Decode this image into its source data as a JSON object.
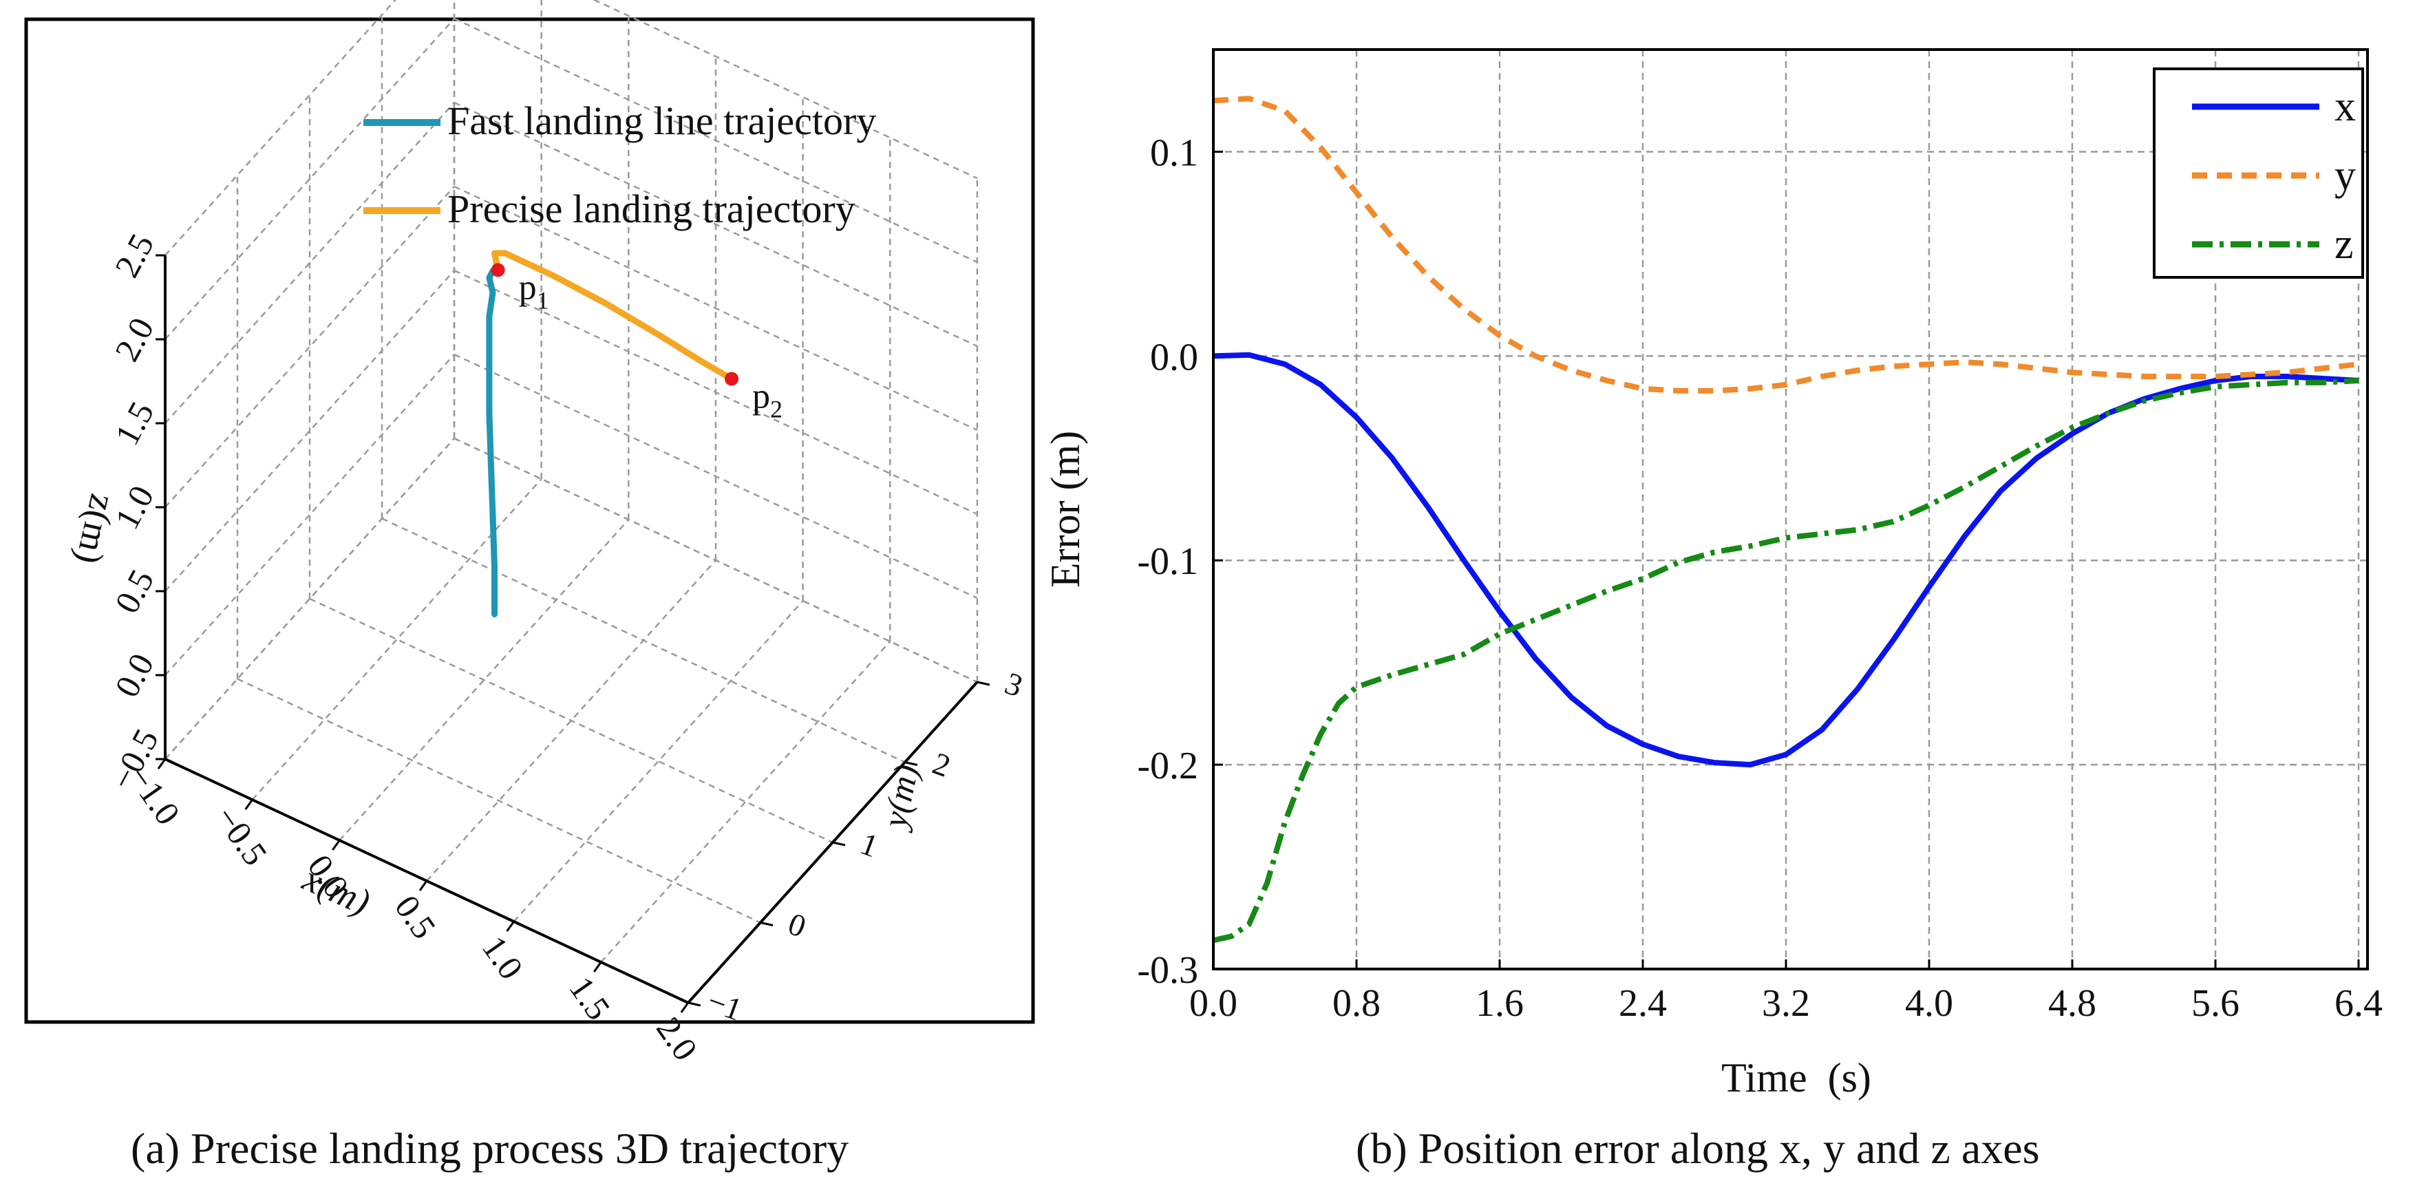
{
  "colors": {
    "fast": "#1e96b4",
    "precise": "#f5a623",
    "point": "#e8141e",
    "x_series": "#0a14ee",
    "y_series": "#f08a2a",
    "z_series": "#158a15",
    "grid": "#9a9a9a"
  },
  "chart_data": [
    {
      "id": "traj3d",
      "type": "line",
      "projection": "3d",
      "title": "(a)  Precise landing  process 3D trajectory",
      "xlabel": "x(m)",
      "ylabel": "y(m)",
      "zlabel": "z(m)",
      "xlim": [
        -1.0,
        2.0
      ],
      "ylim": [
        -1,
        3
      ],
      "zlim": [
        -0.5,
        2.5
      ],
      "x_ticks": [
        -1.0,
        -0.5,
        0.0,
        0.5,
        1.0,
        1.5,
        2.0
      ],
      "x_tick_labels": [
        "−1.0",
        "−0.5",
        "0.0",
        "0.5",
        "1.0",
        "1.5",
        "2.0"
      ],
      "y_ticks": [
        -1,
        0,
        1,
        2,
        3
      ],
      "y_tick_labels": [
        "−1",
        "0",
        "1",
        "2",
        "3"
      ],
      "z_ticks": [
        -0.5,
        0.0,
        0.5,
        1.0,
        1.5,
        2.0,
        2.5
      ],
      "z_tick_labels": [
        "−0.5",
        "0.0",
        "0.5",
        "1.0",
        "1.5",
        "2.0",
        "2.5"
      ],
      "grid": true,
      "legend_position": "top",
      "series": [
        {
          "name": "Fast landing line trajectory",
          "color_key": "fast",
          "points": [
            [
              0.06,
              1.0,
              -0.08
            ],
            [
              0.06,
              1.0,
              0.2
            ],
            [
              0.05,
              1.0,
              0.5
            ],
            [
              0.04,
              1.0,
              0.8
            ],
            [
              0.03,
              1.0,
              1.1
            ],
            [
              0.03,
              1.0,
              1.4
            ],
            [
              0.03,
              1.0,
              1.68
            ],
            [
              0.05,
              1.0,
              1.83
            ],
            [
              0.03,
              1.0,
              1.91
            ],
            [
              0.05,
              1.0,
              1.96
            ],
            [
              0.08,
              1.0,
              1.98
            ]
          ]
        },
        {
          "name": "Precise landing trajectory",
          "color_key": "precise",
          "points": [
            [
              0.08,
              1.0,
              1.98
            ],
            [
              0.06,
              1.0,
              2.07
            ],
            [
              0.12,
              1.0,
              2.1
            ],
            [
              0.4,
              1.0,
              2.1
            ],
            [
              0.7,
              1.0,
              2.08
            ],
            [
              1.0,
              1.0,
              2.04
            ],
            [
              1.25,
              1.0,
              2.0
            ],
            [
              1.42,
              1.0,
              1.98
            ]
          ]
        }
      ],
      "annotations": [
        {
          "label": "p",
          "sub": "1",
          "point": [
            0.08,
            1.0,
            1.98
          ]
        },
        {
          "label": "p",
          "sub": "2",
          "point": [
            1.42,
            1.0,
            1.98
          ]
        }
      ]
    },
    {
      "id": "error2d",
      "type": "line",
      "title": "(b) Position error along x, y and z axes",
      "xlabel": "Time  (s)",
      "ylabel": "Error (m)",
      "xlim": [
        0,
        6.45
      ],
      "ylim": [
        -0.3,
        0.15
      ],
      "x_ticks": [
        0,
        0.8,
        1.6,
        2.4,
        3.2,
        4.0,
        4.8,
        5.6,
        6.4
      ],
      "x_tick_labels": [
        "0.0",
        "0.8",
        "1.6",
        "2.4",
        "3.2",
        "4.0",
        "4.8",
        "5.6",
        "6.4"
      ],
      "y_ticks": [
        -0.3,
        -0.2,
        -0.1,
        0.0,
        0.1
      ],
      "y_tick_labels": [
        "-0.3",
        "-0.2",
        "-0.1",
        "0.0",
        "0.1"
      ],
      "grid": true,
      "legend_position": "top-right",
      "series": [
        {
          "name": "x",
          "color_key": "x_series",
          "dash": "solid",
          "points": [
            [
              0,
              0
            ],
            [
              0.2,
              0.0005
            ],
            [
              0.4,
              -0.004
            ],
            [
              0.6,
              -0.014
            ],
            [
              0.8,
              -0.03
            ],
            [
              1.0,
              -0.05
            ],
            [
              1.2,
              -0.074
            ],
            [
              1.4,
              -0.1
            ],
            [
              1.6,
              -0.125
            ],
            [
              1.8,
              -0.148
            ],
            [
              2.0,
              -0.167
            ],
            [
              2.2,
              -0.181
            ],
            [
              2.4,
              -0.19
            ],
            [
              2.6,
              -0.196
            ],
            [
              2.8,
              -0.199
            ],
            [
              3.0,
              -0.2
            ],
            [
              3.2,
              -0.195
            ],
            [
              3.4,
              -0.183
            ],
            [
              3.6,
              -0.163
            ],
            [
              3.8,
              -0.139
            ],
            [
              4.0,
              -0.113
            ],
            [
              4.2,
              -0.088
            ],
            [
              4.4,
              -0.066
            ],
            [
              4.6,
              -0.05
            ],
            [
              4.8,
              -0.038
            ],
            [
              5.0,
              -0.028
            ],
            [
              5.2,
              -0.021
            ],
            [
              5.4,
              -0.016
            ],
            [
              5.6,
              -0.012
            ],
            [
              5.8,
              -0.01
            ],
            [
              6.0,
              -0.01
            ],
            [
              6.2,
              -0.011
            ],
            [
              6.4,
              -0.012
            ]
          ]
        },
        {
          "name": "y",
          "color_key": "y_series",
          "dash": "dashed",
          "points": [
            [
              0,
              0.125
            ],
            [
              0.2,
              0.126
            ],
            [
              0.4,
              0.12
            ],
            [
              0.6,
              0.102
            ],
            [
              0.8,
              0.08
            ],
            [
              1.0,
              0.058
            ],
            [
              1.2,
              0.039
            ],
            [
              1.4,
              0.023
            ],
            [
              1.6,
              0.01
            ],
            [
              1.8,
              0.0
            ],
            [
              2.0,
              -0.007
            ],
            [
              2.2,
              -0.012
            ],
            [
              2.4,
              -0.016
            ],
            [
              2.6,
              -0.017
            ],
            [
              2.8,
              -0.017
            ],
            [
              3.0,
              -0.016
            ],
            [
              3.2,
              -0.014
            ],
            [
              3.4,
              -0.01
            ],
            [
              3.6,
              -0.007
            ],
            [
              3.8,
              -0.005
            ],
            [
              4.0,
              -0.004
            ],
            [
              4.2,
              -0.003
            ],
            [
              4.4,
              -0.004
            ],
            [
              4.6,
              -0.006
            ],
            [
              4.8,
              -0.008
            ],
            [
              5.0,
              -0.009
            ],
            [
              5.2,
              -0.01
            ],
            [
              5.4,
              -0.01
            ],
            [
              5.6,
              -0.01
            ],
            [
              5.8,
              -0.009
            ],
            [
              6.0,
              -0.008
            ],
            [
              6.2,
              -0.006
            ],
            [
              6.4,
              -0.004
            ]
          ]
        },
        {
          "name": "z",
          "color_key": "z_series",
          "dash": "dashdot",
          "points": [
            [
              0,
              -0.286
            ],
            [
              0.1,
              -0.284
            ],
            [
              0.2,
              -0.278
            ],
            [
              0.3,
              -0.258
            ],
            [
              0.4,
              -0.228
            ],
            [
              0.5,
              -0.205
            ],
            [
              0.6,
              -0.185
            ],
            [
              0.7,
              -0.17
            ],
            [
              0.8,
              -0.162
            ],
            [
              1.0,
              -0.156
            ],
            [
              1.2,
              -0.151
            ],
            [
              1.4,
              -0.146
            ],
            [
              1.6,
              -0.136
            ],
            [
              1.8,
              -0.129
            ],
            [
              2.0,
              -0.122
            ],
            [
              2.2,
              -0.115
            ],
            [
              2.4,
              -0.109
            ],
            [
              2.6,
              -0.101
            ],
            [
              2.8,
              -0.096
            ],
            [
              3.0,
              -0.093
            ],
            [
              3.2,
              -0.089
            ],
            [
              3.4,
              -0.087
            ],
            [
              3.6,
              -0.085
            ],
            [
              3.8,
              -0.081
            ],
            [
              4.0,
              -0.073
            ],
            [
              4.2,
              -0.064
            ],
            [
              4.4,
              -0.054
            ],
            [
              4.6,
              -0.044
            ],
            [
              4.8,
              -0.035
            ],
            [
              5.0,
              -0.028
            ],
            [
              5.2,
              -0.022
            ],
            [
              5.4,
              -0.018
            ],
            [
              5.6,
              -0.015
            ],
            [
              5.8,
              -0.014
            ],
            [
              6.0,
              -0.013
            ],
            [
              6.2,
              -0.013
            ],
            [
              6.4,
              -0.012
            ]
          ]
        }
      ]
    }
  ]
}
